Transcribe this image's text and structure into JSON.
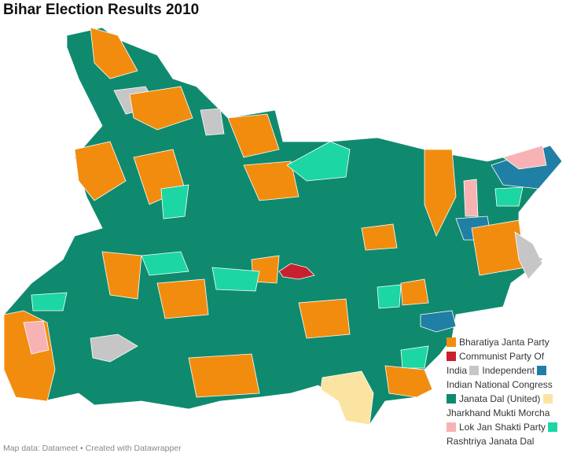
{
  "title": "Bihar Election Results 2010",
  "legend": [
    {
      "name": "Bharatiya Janta Party",
      "color": "#f28c0f"
    },
    {
      "name": "Communist Party Of India",
      "color": "#c8202f"
    },
    {
      "name": "Independent",
      "color": "#c6c6c6"
    },
    {
      "name": "Indian National Congress",
      "color": "#1f7fa5"
    },
    {
      "name": "Janata Dal (United)",
      "color": "#0f8a6e"
    },
    {
      "name": "Jharkhand Mukti Morcha",
      "color": "#fbe3a1"
    },
    {
      "name": "Lok Jan Shakti Party",
      "color": "#f7b3b3"
    },
    {
      "name": "Rashtriya Janata Dal",
      "color": "#1cd6a3"
    }
  ],
  "footer": "Map data: Datameet • Created with Datawrapper"
}
